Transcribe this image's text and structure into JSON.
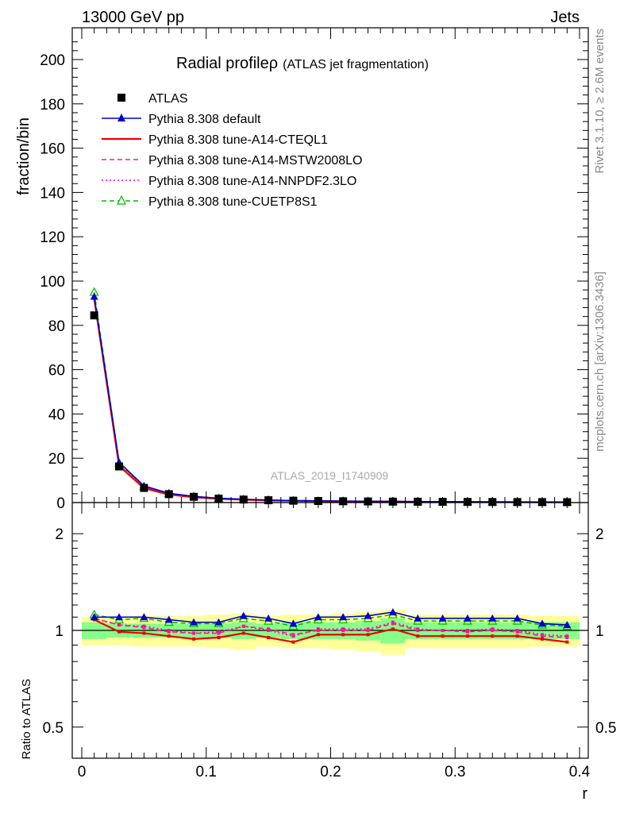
{
  "header": {
    "left": "13000 GeV pp",
    "right": "Jets"
  },
  "plot_title": {
    "main": "Radial profileρ",
    "sub": "(ATLAS jet fragmentation)"
  },
  "watermark": "ATLAS_2019_I1740909",
  "side_labels": {
    "rivet": "Rivet 3.1.10, ≥ 2.6M events",
    "mcplots": "mcplots.cern.ch [arXiv:1306.3436]"
  },
  "legend": [
    {
      "label": "ATLAS",
      "color": "#000000",
      "style": "square"
    },
    {
      "label": "Pythia 8.308 default",
      "color": "#0000cc",
      "style": "solid-triangle"
    },
    {
      "label": "Pythia 8.308 tune-A14-CTEQL1",
      "color": "#ee0000",
      "style": "solid"
    },
    {
      "label": "Pythia 8.308 tune-A14-MSTW2008LO",
      "color": "#ff1493",
      "style": "dashed"
    },
    {
      "label": "Pythia 8.308 tune-A14-NNPDF2.3LO",
      "color": "#ff00cc",
      "style": "dotted"
    },
    {
      "label": "Pythia 8.308 tune-CUETP8S1",
      "color": "#00bb00",
      "style": "dashed-open-triangle"
    }
  ],
  "axis_tick_labels": {
    "main_y": [
      "0",
      "20",
      "40",
      "60",
      "80",
      "100",
      "120",
      "140",
      "160",
      "180",
      "200"
    ],
    "ratio_y": [
      "0.5",
      "1",
      "2"
    ],
    "x": [
      "0",
      "0.1",
      "0.2",
      "0.3",
      "0.4"
    ]
  },
  "chart_data": [
    {
      "type": "line",
      "panel": "main",
      "ylabel": "fraction/bin",
      "xlabel": "r",
      "xlim": [
        -0.01,
        0.4
      ],
      "ylim": [
        0,
        215
      ],
      "x": [
        0.01,
        0.03,
        0.05,
        0.07,
        0.09,
        0.11,
        0.13,
        0.15,
        0.17,
        0.19,
        0.21,
        0.23,
        0.25,
        0.27,
        0.29,
        0.31,
        0.33,
        0.35,
        0.37,
        0.39
      ],
      "series": [
        {
          "name": "ATLAS",
          "values": [
            84.5,
            16.3,
            6.6,
            3.8,
            2.6,
            1.8,
            1.35,
            1.05,
            0.85,
            0.7,
            0.58,
            0.5,
            0.43,
            0.37,
            0.33,
            0.29,
            0.26,
            0.23,
            0.21,
            0.19
          ]
        },
        {
          "name": "Pythia 8.308 default",
          "values": [
            93.0,
            18.2,
            7.5,
            4.2,
            2.8,
            1.95,
            1.5,
            1.15,
            0.9,
            0.78,
            0.65,
            0.56,
            0.5,
            0.41,
            0.37,
            0.32,
            0.29,
            0.26,
            0.22,
            0.2
          ]
        },
        {
          "name": "Pythia 8.308 tune-A14-CTEQL1",
          "values": [
            92.0,
            16.5,
            6.5,
            3.6,
            2.4,
            1.7,
            1.3,
            0.98,
            0.78,
            0.67,
            0.55,
            0.48,
            0.44,
            0.35,
            0.31,
            0.28,
            0.25,
            0.22,
            0.19,
            0.17
          ]
        },
        {
          "name": "Pythia 8.308 tune-A14-MSTW2008LO",
          "values": [
            92.5,
            17.0,
            6.8,
            3.75,
            2.5,
            1.75,
            1.38,
            1.02,
            0.8,
            0.7,
            0.58,
            0.5,
            0.46,
            0.37,
            0.33,
            0.29,
            0.26,
            0.23,
            0.2,
            0.18
          ]
        },
        {
          "name": "Pythia 8.308 tune-A14-NNPDF2.3LO",
          "values": [
            92.8,
            17.1,
            6.9,
            3.8,
            2.55,
            1.78,
            1.4,
            1.04,
            0.81,
            0.71,
            0.59,
            0.51,
            0.47,
            0.38,
            0.33,
            0.29,
            0.26,
            0.23,
            0.2,
            0.18
          ]
        },
        {
          "name": "Pythia 8.308 tune-CUETP8S1",
          "values": [
            95.0,
            17.8,
            7.3,
            4.1,
            2.75,
            1.9,
            1.46,
            1.12,
            0.88,
            0.76,
            0.63,
            0.55,
            0.49,
            0.4,
            0.36,
            0.31,
            0.28,
            0.25,
            0.22,
            0.2
          ]
        }
      ]
    },
    {
      "type": "line",
      "panel": "ratio",
      "ylabel": "Ratio to ATLAS",
      "xlabel": "r",
      "xlim": [
        -0.01,
        0.4
      ],
      "ylim": [
        0.4,
        2.5
      ],
      "y_scale": "log",
      "x": [
        0.01,
        0.03,
        0.05,
        0.07,
        0.09,
        0.11,
        0.13,
        0.15,
        0.17,
        0.19,
        0.21,
        0.23,
        0.25,
        0.27,
        0.29,
        0.31,
        0.33,
        0.35,
        0.37,
        0.39
      ],
      "bands": {
        "green_half_width": [
          0.06,
          0.05,
          0.05,
          0.05,
          0.05,
          0.05,
          0.06,
          0.05,
          0.06,
          0.06,
          0.06,
          0.07,
          0.09,
          0.06,
          0.06,
          0.06,
          0.06,
          0.06,
          0.06,
          0.06
        ],
        "yellow_half_width": [
          0.1,
          0.1,
          0.11,
          0.11,
          0.11,
          0.12,
          0.13,
          0.11,
          0.12,
          0.12,
          0.13,
          0.14,
          0.16,
          0.12,
          0.12,
          0.12,
          0.12,
          0.12,
          0.11,
          0.11
        ],
        "green_color": "#88ff88",
        "yellow_color": "#ffff99"
      },
      "series": [
        {
          "name": "Pythia 8.308 default",
          "values": [
            1.1,
            1.1,
            1.1,
            1.08,
            1.06,
            1.06,
            1.11,
            1.09,
            1.05,
            1.1,
            1.1,
            1.11,
            1.14,
            1.09,
            1.09,
            1.09,
            1.09,
            1.09,
            1.05,
            1.04
          ]
        },
        {
          "name": "Pythia 8.308 tune-A14-CTEQL1",
          "values": [
            1.08,
            0.99,
            0.98,
            0.96,
            0.94,
            0.95,
            0.98,
            0.95,
            0.92,
            0.97,
            0.97,
            0.97,
            1.01,
            0.96,
            0.96,
            0.96,
            0.96,
            0.96,
            0.94,
            0.92
          ]
        },
        {
          "name": "Pythia 8.308 tune-A14-MSTW2008LO",
          "values": [
            1.09,
            1.04,
            1.02,
            0.99,
            0.98,
            0.98,
            1.03,
            1.01,
            0.97,
            1.0,
            1.0,
            1.0,
            1.05,
            1.0,
            1.0,
            0.99,
            1.0,
            0.99,
            0.96,
            0.95
          ]
        },
        {
          "name": "Pythia 8.308 tune-A14-NNPDF2.3LO",
          "values": [
            1.09,
            1.04,
            1.03,
            1.0,
            0.98,
            0.99,
            1.03,
            1.0,
            0.96,
            1.01,
            1.01,
            1.01,
            1.06,
            1.01,
            1.0,
            1.0,
            1.01,
            1.0,
            0.97,
            0.96
          ]
        },
        {
          "name": "Pythia 8.308 tune-CUETP8S1",
          "values": [
            1.12,
            1.08,
            1.09,
            1.06,
            1.05,
            1.05,
            1.09,
            1.07,
            1.03,
            1.08,
            1.08,
            1.09,
            1.12,
            1.07,
            1.07,
            1.07,
            1.07,
            1.07,
            1.04,
            1.03
          ]
        }
      ]
    }
  ]
}
